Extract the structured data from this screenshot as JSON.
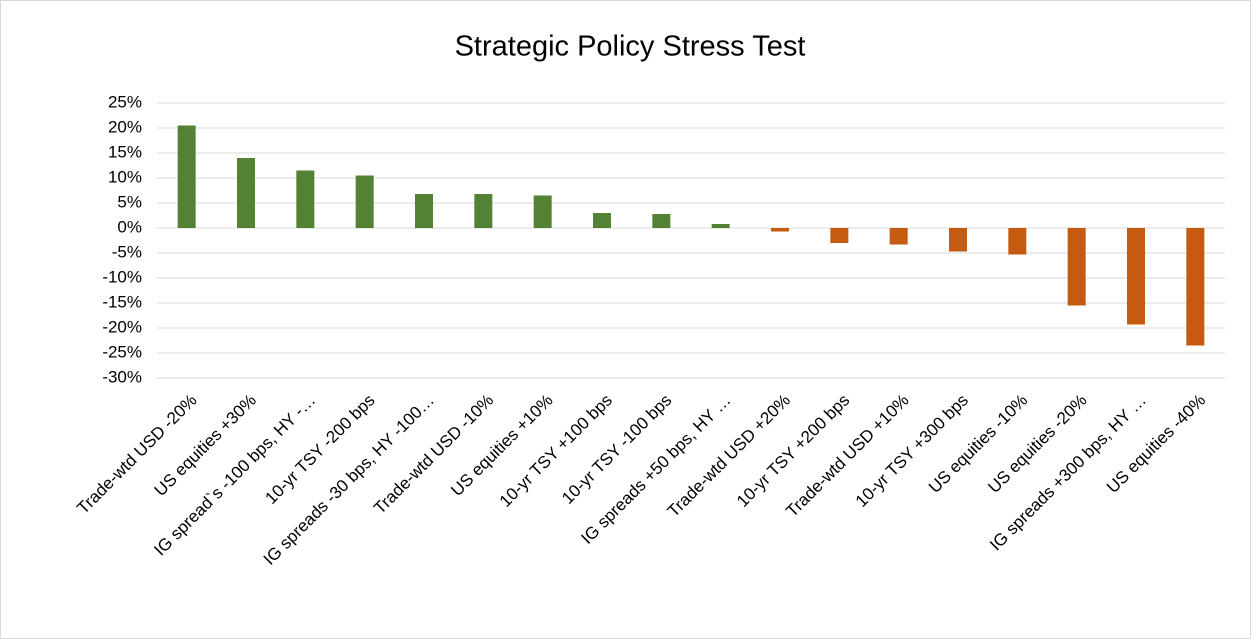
{
  "chart_data": {
    "type": "bar",
    "title": "Strategic Policy Stress Test",
    "categories": [
      "Trade-wtd USD -20%",
      "US equities +30%",
      "IG spread`s -100 bps, HY -…",
      "10-yr TSY -200 bps",
      "IG spreads -30 bps, HY -100…",
      "Trade-wtd USD -10%",
      "US equities +10%",
      "10-yr TSY +100 bps",
      "10-yr TSY -100 bps",
      "IG spreads +50 bps, HY …",
      "Trade-wtd USD +20%",
      "10-yr TSY +200 bps",
      "Trade-wtd USD +10%",
      "10-yr TSY +300 bps",
      "US equities -10%",
      "US equities -20%",
      "IG spreads +300 bps, HY …",
      "US equities -40%"
    ],
    "values": [
      20.5,
      14,
      11.5,
      10.5,
      6.8,
      6.8,
      6.5,
      3,
      2.8,
      0.8,
      -0.7,
      -3,
      -3.3,
      -4.7,
      -5.3,
      -15.5,
      -19.3,
      -23.5
    ],
    "color_positive": "#548235",
    "color_negative": "#c55a11",
    "ylim": [
      -30,
      25
    ],
    "yticks": [
      {
        "value": -30,
        "label": "-30%"
      },
      {
        "value": -25,
        "label": "-25%"
      },
      {
        "value": -20,
        "label": "-20%"
      },
      {
        "value": -15,
        "label": "-15%"
      },
      {
        "value": -10,
        "label": "-10%"
      },
      {
        "value": -5,
        "label": "-5%"
      },
      {
        "value": 0,
        "label": "0%"
      },
      {
        "value": 5,
        "label": "5%"
      },
      {
        "value": 10,
        "label": "10%"
      },
      {
        "value": 15,
        "label": "15%"
      },
      {
        "value": 20,
        "label": "20%"
      },
      {
        "value": 25,
        "label": "25%"
      }
    ],
    "grid": true
  }
}
